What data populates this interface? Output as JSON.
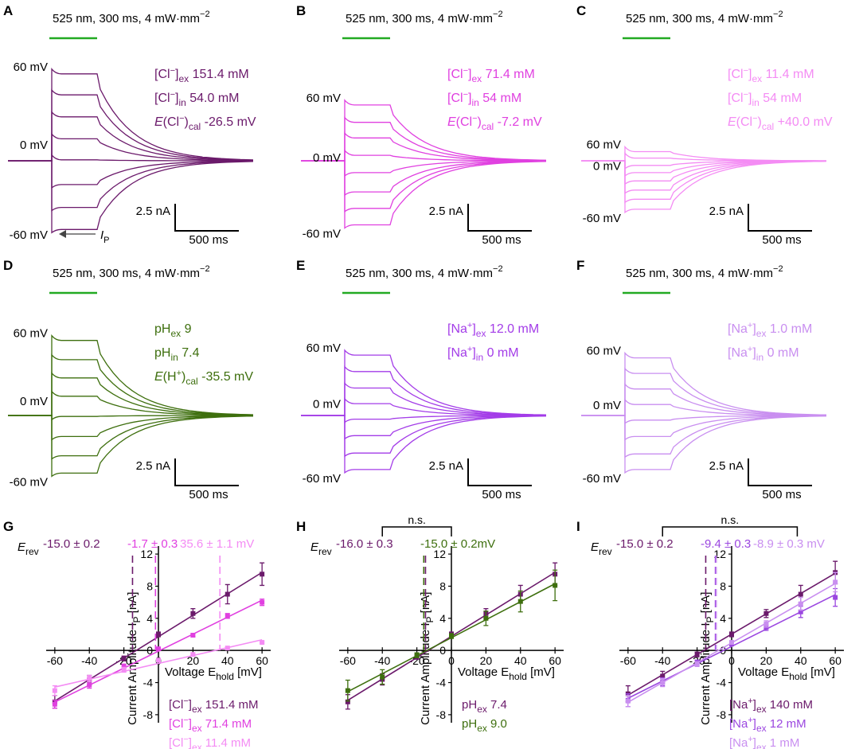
{
  "figure": {
    "colors": {
      "dark_purple": "#6b1a6b",
      "magenta": "#e040e0",
      "pink": "#f48cf4",
      "green": "#3e6f0e",
      "violet": "#a33ce8",
      "lavender": "#c98ff0",
      "stimulus_green": "#22aa22",
      "mid_purple": "#9b47e0"
    },
    "stimulus_label": "525 nm, 300 ms, 4 mW·mm",
    "stimulus_exp": "−2",
    "scalebar": {
      "current": "2.5 nA",
      "time": "500 ms"
    },
    "trace_panels": [
      {
        "letter": "A",
        "color": "#6b1a6b",
        "voltage_labels": [
          "60 mV",
          "0 mV",
          "-60 mV"
        ],
        "ip_label": "I",
        "ip_sub": "P",
        "conditions": [
          {
            "pre": "[Cl",
            "sup": "−",
            "mid": "]",
            "sub": "ex",
            "val": " 151.4 mM"
          },
          {
            "pre": "[Cl",
            "sup": "−",
            "mid": "]",
            "sub": "in",
            "val": " 54.0 mM"
          },
          {
            "italic": "E",
            "pre": "(Cl",
            "sup": "−",
            "mid": ")",
            "sub": "cal",
            "val": " -26.5 mV"
          }
        ],
        "amp_nA": [
          9.5,
          7.2,
          4.8,
          2.4,
          0.1,
          -2.6,
          -5.1,
          -7.5
        ]
      },
      {
        "letter": "B",
        "color": "#e040e0",
        "voltage_labels": [
          "60 mV",
          "0 mV",
          "-60 mV"
        ],
        "conditions": [
          {
            "pre": "[Cl",
            "sup": "−",
            "mid": "]",
            "sub": "ex",
            "val": " 71.4 mM"
          },
          {
            "pre": "[Cl",
            "sup": "−",
            "mid": "]",
            "sub": "in",
            "val": " 54 mM"
          },
          {
            "italic": "E",
            "pre": "(Cl",
            "sup": "−",
            "mid": ")",
            "sub": "cal",
            "val": " -7.2 mV"
          }
        ],
        "amp_nA": [
          6.1,
          4.2,
          2.5,
          0.6,
          -1.3,
          -3.4,
          -5.2,
          -7.0
        ]
      },
      {
        "letter": "C",
        "color": "#f48cf4",
        "voltage_labels": [
          "60 mV",
          "0 mV",
          "-60 mV"
        ],
        "conditions": [
          {
            "pre": "[Cl",
            "sup": "−",
            "mid": "]",
            "sub": "ex",
            "val": " 11.4 mM"
          },
          {
            "pre": "[Cl",
            "sup": "−",
            "mid": "]",
            "sub": "in",
            "val": " 54 mM"
          },
          {
            "italic": "E",
            "pre": "(Cl",
            "sup": "−",
            "mid": ")",
            "sub": "cal",
            "val": " +40.0 mV"
          }
        ],
        "amp_nA": [
          1.0,
          0.3,
          -0.5,
          -1.3,
          -2.2,
          -3.2,
          -4.2,
          -5.3
        ]
      },
      {
        "letter": "D",
        "color": "#3e6f0e",
        "voltage_labels": [
          "60 mV",
          "0 mV",
          "-60 mV"
        ],
        "conditions": [
          {
            "pre": "pH",
            "sub": "ex",
            "val": " 9"
          },
          {
            "pre": "pH",
            "sub": "in",
            "val": " 7.4"
          },
          {
            "italic": "E",
            "pre": "(H",
            "sup": "+",
            "mid": ")",
            "sub": "cal",
            "val": " -35.5 mV"
          }
        ],
        "amp_nA": [
          8.2,
          6.1,
          4.1,
          2.1,
          -0.1,
          -2.3,
          -4.4,
          -6.3
        ]
      },
      {
        "letter": "E",
        "color": "#a33ce8",
        "voltage_labels": [
          "60 mV",
          "0 mV",
          "-60 mV"
        ],
        "conditions": [
          {
            "pre": "[Na",
            "sup": "+",
            "mid": "]",
            "sub": "ex",
            "val": " 12.0 mM"
          },
          {
            "pre": "[Na",
            "sup": "+",
            "mid": "]",
            "sub": "in",
            "val": " 0 mM"
          }
        ],
        "amp_nA": [
          6.6,
          4.8,
          3.0,
          1.3,
          -0.4,
          -2.2,
          -4.1,
          -5.9
        ]
      },
      {
        "letter": "F",
        "color": "#c98ff0",
        "voltage_labels": [
          "60 mV",
          "0 mV",
          "-60 mV"
        ],
        "conditions": [
          {
            "pre": "[Na",
            "sup": "+",
            "mid": "]",
            "sub": "ex",
            "val": " 1.0 mM"
          },
          {
            "pre": "[Na",
            "sup": "+",
            "mid": "]",
            "sub": "in",
            "val": " 0 mM"
          }
        ],
        "amp_nA": [
          6.3,
          4.6,
          2.9,
          1.2,
          -0.5,
          -2.3,
          -4.2,
          -5.9
        ]
      }
    ]
  },
  "chart_data": [
    {
      "panel": "G",
      "type": "scatter",
      "xlabel": "Voltage E",
      "xlabel_sub": "hold",
      "xlabel_unit": " [mV]",
      "ylabel": "Current Amplitude I",
      "ylabel_sub": "P",
      "ylabel_unit": " [nA]",
      "xlim": [
        -65,
        65
      ],
      "ylim": [
        -9,
        13
      ],
      "xticks": [
        -60,
        -40,
        -20,
        0,
        20,
        40,
        60
      ],
      "yticks": [
        -8,
        -4,
        0,
        4,
        8,
        12
      ],
      "erev_label": "E",
      "erev_sub": "rev",
      "erev_texts": [
        "-15.0 ± 0.2",
        "-1.7 ± 0.3",
        "35.6 ± 1.1 mV"
      ],
      "series": [
        {
          "name": "151.4 mM",
          "pre": "[Cl",
          "sup": "−",
          "mid": "]",
          "sub": "ex",
          "color": "#6b1a6b",
          "erev": -15.0,
          "x": [
            -60,
            -40,
            -20,
            0,
            20,
            40,
            60
          ],
          "y": [
            -6.4,
            -3.7,
            -1.0,
            2.0,
            4.6,
            7.0,
            9.5
          ],
          "err": [
            0.8,
            0.6,
            0.3,
            0.3,
            0.6,
            1.2,
            1.4
          ]
        },
        {
          "name": "71.4 mM",
          "pre": "[Cl",
          "sup": "−",
          "mid": "]",
          "sub": "ex",
          "color": "#e040e0",
          "erev": -1.7,
          "x": [
            -60,
            -40,
            -20,
            0,
            20,
            40,
            60
          ],
          "y": [
            -6.7,
            -4.3,
            -2.0,
            0.2,
            1.9,
            4.3,
            6.0
          ],
          "err": [
            0.5,
            0.4,
            0.3,
            0.2,
            0.2,
            0.3,
            0.4
          ]
        },
        {
          "name": "11.4 mM",
          "pre": "[Cl",
          "sup": "−",
          "mid": "]",
          "sub": "ex",
          "color": "#f48cf4",
          "erev": 35.6,
          "x": [
            -60,
            -40,
            -20,
            0,
            20,
            40,
            60
          ],
          "y": [
            -5.0,
            -3.5,
            -2.4,
            -1.2,
            -0.5,
            0.3,
            1.0
          ],
          "err": [
            0.6,
            0.4,
            0.3,
            0.2,
            0.1,
            0.1,
            0.1
          ]
        }
      ]
    },
    {
      "panel": "H",
      "type": "scatter",
      "xlabel": "Voltage E",
      "xlabel_sub": "hold",
      "xlabel_unit": " [mV]",
      "ylabel": "Current Amplitude I",
      "ylabel_sub": "P",
      "ylabel_unit": " [nA]",
      "xlim": [
        -65,
        65
      ],
      "ylim": [
        -9,
        13
      ],
      "xticks": [
        -60,
        -40,
        -20,
        0,
        20,
        40,
        60
      ],
      "yticks": [
        -8,
        -4,
        0,
        4,
        8,
        12
      ],
      "erev_label": "E",
      "erev_sub": "rev",
      "erev_texts": [
        "-16.0 ± 0.3",
        "-15.0 ± 0.2mV"
      ],
      "significance": "n.s.",
      "series": [
        {
          "name": "7.4",
          "pre": "pH",
          "sub": "ex",
          "color": "#6b1a6b",
          "erev": -15.0,
          "x": [
            -60,
            -40,
            -20,
            0,
            20,
            40,
            60
          ],
          "y": [
            -6.4,
            -3.6,
            -0.8,
            2.0,
            4.6,
            7.0,
            9.5
          ],
          "err": [
            0.9,
            0.7,
            0.3,
            0.3,
            0.6,
            1.1,
            1.4
          ]
        },
        {
          "name": "9.0",
          "pre": "pH",
          "sub": "ex",
          "color": "#3e6f0e",
          "erev": -16.0,
          "x": [
            -60,
            -40,
            -20,
            0,
            20,
            40,
            60
          ],
          "y": [
            -5.0,
            -3.3,
            -0.6,
            1.8,
            4.0,
            6.1,
            8.1
          ],
          "err": [
            1.3,
            0.9,
            0.3,
            0.3,
            0.9,
            1.3,
            1.9
          ]
        }
      ]
    },
    {
      "panel": "I",
      "type": "scatter",
      "xlabel": "Voltage E",
      "xlabel_sub": "hold",
      "xlabel_unit": " [mV]",
      "ylabel": "Current Amplitude I",
      "ylabel_sub": "P",
      "ylabel_unit": " [nA]",
      "xlim": [
        -65,
        65
      ],
      "ylim": [
        -9,
        13
      ],
      "xticks": [
        -60,
        -40,
        -20,
        0,
        20,
        40,
        60
      ],
      "yticks": [
        -8,
        -4,
        0,
        4,
        8,
        12
      ],
      "erev_label": "E",
      "erev_sub": "rev",
      "erev_texts": [
        "-15.0 ± 0.2",
        "-9.4 ± 0.3",
        "-8.9 ± 0.3 mV"
      ],
      "significance": "n.s.",
      "series": [
        {
          "name": "140 mM",
          "pre": "[Na",
          "sup": "+",
          "mid": "]",
          "sub": "ex",
          "color": "#6b1a6b",
          "erev": -15.0,
          "x": [
            -60,
            -40,
            -20,
            0,
            20,
            40,
            60
          ],
          "y": [
            -5.4,
            -3.2,
            -0.5,
            2.0,
            4.6,
            7.0,
            9.7
          ],
          "err": [
            1.0,
            0.6,
            0.3,
            0.3,
            0.5,
            1.1,
            1.4
          ]
        },
        {
          "name": "12 mM",
          "pre": "[Na",
          "sup": "+",
          "mid": "]",
          "sub": "ex",
          "color": "#9b47e0",
          "erev": -9.4,
          "x": [
            -60,
            -40,
            -20,
            0,
            20,
            40,
            60
          ],
          "y": [
            -6.2,
            -3.9,
            -1.5,
            0.8,
            2.9,
            4.8,
            6.6
          ],
          "err": [
            0.8,
            0.5,
            0.3,
            0.2,
            0.4,
            0.7,
            1.1
          ]
        },
        {
          "name": "1 mM",
          "pre": "[Na",
          "sup": "+",
          "mid": "]",
          "sub": "ex",
          "color": "#c98ff0",
          "erev": -8.9,
          "x": [
            -60,
            -40,
            -20,
            0,
            20,
            40,
            60
          ],
          "y": [
            -6.3,
            -4.0,
            -1.7,
            1.0,
            3.3,
            5.8,
            8.5
          ],
          "err": [
            0.7,
            0.5,
            0.3,
            0.2,
            0.4,
            0.8,
            1.2
          ]
        }
      ]
    }
  ]
}
